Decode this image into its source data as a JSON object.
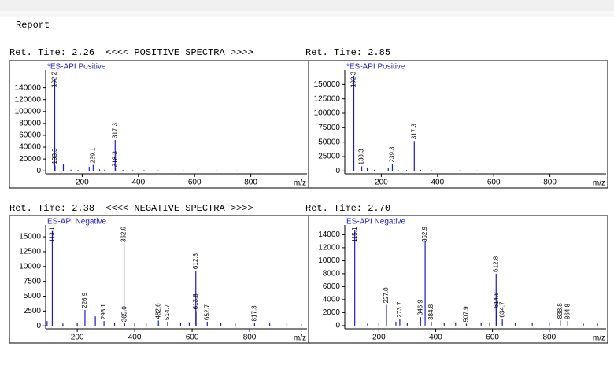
{
  "report_title": "Report",
  "headers": [
    "Ret. Time: 2.26  <<<< POSITIVE SPECTRA >>>>",
    "Ret. Time: 2.85",
    "Ret. Time: 2.38  <<<< NEGATIVE SPECTRA >>>>",
    "Ret. Time: 2.70"
  ],
  "chart_data": [
    {
      "type": "spectrum",
      "title": "*ES-API Positive",
      "xlabel": "m/z",
      "color": "#1a1acc",
      "xlim": [
        70,
        1000
      ],
      "xticks": [
        200,
        400,
        600,
        800
      ],
      "ylim": [
        -5000,
        170000
      ],
      "yticks": [
        0,
        20000,
        40000,
        60000,
        80000,
        100000,
        120000,
        140000
      ],
      "x": [
        102.2,
        103.3,
        133.0,
        160,
        185,
        225.0,
        239.1,
        262,
        280,
        317.3,
        318.3,
        345,
        380,
        420,
        470,
        520,
        560,
        610,
        680,
        750,
        830,
        900,
        960
      ],
      "values": [
        155000,
        9000,
        12000,
        2000,
        1500,
        7000,
        10000,
        2500,
        2000,
        52000,
        4000,
        1500,
        1000,
        1200,
        800,
        900,
        700,
        600,
        500,
        500,
        400,
        400,
        300
      ],
      "peak_labels": [
        "102.2",
        "103.3",
        null,
        null,
        null,
        null,
        "239.1",
        null,
        null,
        "317.3",
        "318.3",
        null,
        null,
        null,
        null,
        null,
        null,
        null,
        null,
        null,
        null,
        null,
        null
      ]
    },
    {
      "type": "spectrum",
      "title": "*ES-API Positive",
      "xlabel": "m/z",
      "color": "#1a1acc",
      "xlim": [
        70,
        1000
      ],
      "xticks": [
        200,
        400,
        600,
        800
      ],
      "ylim": [
        -5000,
        175000
      ],
      "yticks": [
        0,
        25000,
        50000,
        75000,
        100000,
        125000,
        150000
      ],
      "x": [
        102.3,
        130.3,
        150,
        175,
        225,
        239.3,
        260,
        290,
        317.3,
        340,
        380,
        430,
        480,
        540,
        600,
        660,
        720,
        790,
        860,
        930
      ],
      "values": [
        165000,
        8000,
        5000,
        2000,
        5000,
        12000,
        2000,
        1500,
        52000,
        2000,
        1000,
        900,
        800,
        700,
        600,
        500,
        500,
        400,
        400,
        300
      ],
      "peak_labels": [
        "102.3",
        "130.3",
        null,
        null,
        null,
        "239.3",
        null,
        null,
        "317.3",
        null,
        null,
        null,
        null,
        null,
        null,
        null,
        null,
        null,
        null,
        null
      ]
    },
    {
      "type": "spectrum",
      "title": "ES-API Negative",
      "xlabel": "m/z",
      "color": "#1a1acc",
      "xlim": [
        90,
        1000
      ],
      "xticks": [
        200,
        400,
        600,
        800
      ],
      "ylim": [
        -500,
        17000
      ],
      "yticks": [
        0,
        2500,
        5000,
        7500,
        10000,
        12500,
        15000
      ],
      "x": [
        95,
        113.1,
        150,
        200,
        226.9,
        263,
        293.1,
        330,
        362.9,
        365.0,
        400,
        440,
        482.6,
        514.7,
        560,
        590,
        612.8,
        613.8,
        652.7,
        700,
        750,
        817.3,
        870,
        930,
        980
      ],
      "values": [
        800,
        16000,
        400,
        500,
        2700,
        1600,
        800,
        500,
        14000,
        400,
        500,
        500,
        900,
        700,
        500,
        600,
        9300,
        2500,
        700,
        500,
        400,
        500,
        400,
        400,
        300
      ],
      "peak_labels": [
        null,
        "113.1",
        null,
        null,
        "226.9",
        null,
        "293.1",
        null,
        "362.9",
        "365.0",
        null,
        null,
        "482.6",
        "514.7",
        null,
        null,
        "612.8",
        "613.8",
        "652.7",
        null,
        null,
        "817.3",
        null,
        null,
        null
      ]
    },
    {
      "type": "spectrum",
      "title": "ES-API Negative",
      "xlabel": "m/z",
      "color": "#1a1acc",
      "xlim": [
        80,
        1000
      ],
      "xticks": [
        200,
        400,
        600,
        800
      ],
      "ylim": [
        -500,
        15500
      ],
      "yticks": [
        0,
        2000,
        4000,
        6000,
        8000,
        10000,
        12000,
        14000
      ],
      "x": [
        115.1,
        160,
        200,
        227.0,
        260,
        273.7,
        300,
        346.9,
        362.9,
        384.8,
        430,
        470,
        507.9,
        560,
        590,
        612.8,
        614.8,
        634.7,
        680,
        740,
        800,
        838.8,
        864.8,
        920,
        970
      ],
      "values": [
        14700,
        300,
        400,
        3200,
        600,
        1000,
        400,
        1300,
        13000,
        600,
        400,
        500,
        300,
        400,
        500,
        8000,
        2500,
        1000,
        400,
        400,
        500,
        800,
        700,
        300,
        300
      ],
      "peak_labels": [
        "115.1",
        null,
        null,
        "227.0",
        null,
        "273.7",
        null,
        "346.9",
        "362.9",
        "384.8",
        null,
        null,
        "507.9",
        null,
        null,
        "612.8",
        "614.8",
        "634.7",
        null,
        null,
        null,
        "838.8",
        "864.8",
        null,
        null
      ]
    }
  ]
}
